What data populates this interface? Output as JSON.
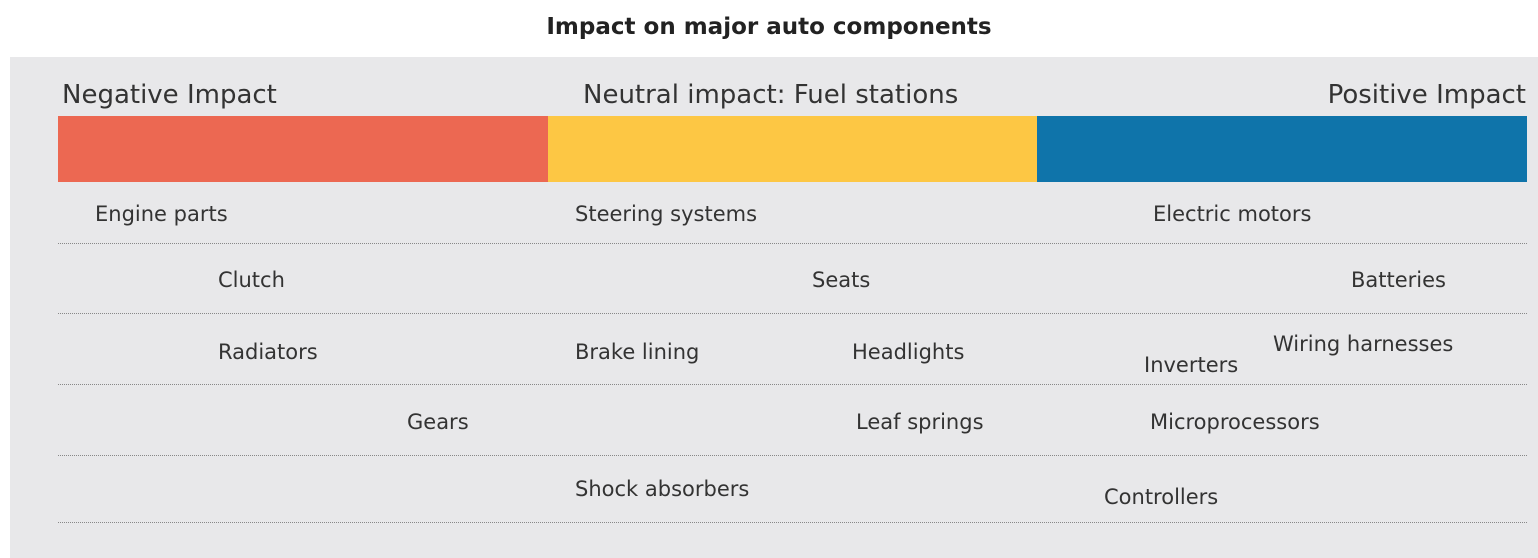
{
  "title": "Impact on major auto components",
  "headers": {
    "negative": "Negative Impact",
    "neutral": "Neutral impact: Fuel stations",
    "positive": "Positive Impact"
  },
  "items": [
    "Engine parts",
    "Steering systems",
    "Electric motors",
    "Clutch",
    "Seats",
    "Batteries",
    "Radiators",
    "Brake lining",
    "Headlights",
    "Inverters",
    "Wiring harnesses",
    "Gears",
    "Leaf springs",
    "Microprocessors",
    "Shock absorbers",
    "Controllers"
  ]
}
